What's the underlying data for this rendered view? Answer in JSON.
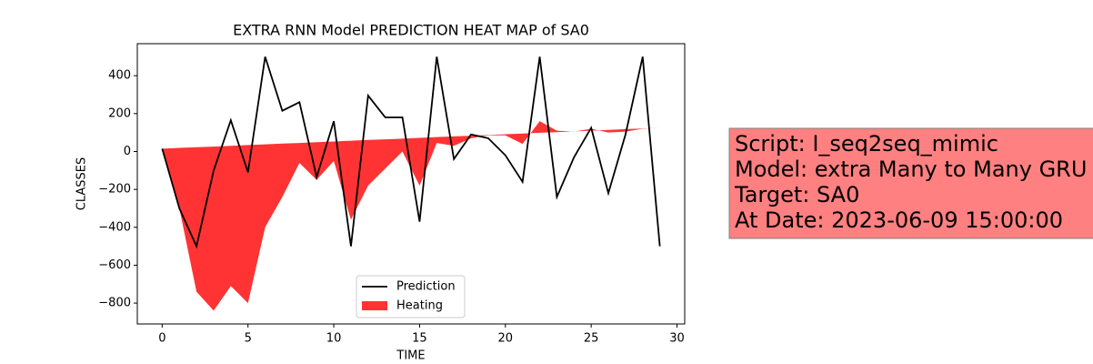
{
  "chart_data": {
    "type": "line_band",
    "title": "EXTRA RNN Model PREDICTION HEAT MAP of SA0",
    "xlabel": "TIME",
    "ylabel": "CLASSES",
    "x": [
      0,
      1,
      2,
      3,
      4,
      5,
      6,
      7,
      8,
      9,
      10,
      11,
      12,
      13,
      14,
      15,
      16,
      17,
      18,
      19,
      20,
      21,
      22,
      23,
      24,
      25,
      26,
      27,
      28,
      29
    ],
    "series": [
      {
        "name": "Prediction",
        "color": "#000000",
        "values": [
          15,
          -300,
          -500,
          -100,
          165,
          -110,
          500,
          215,
          260,
          -135,
          160,
          -500,
          295,
          180,
          180,
          -370,
          500,
          -40,
          90,
          70,
          -20,
          -160,
          500,
          -240,
          -30,
          125,
          -220,
          90,
          500,
          -500
        ]
      },
      {
        "name": "Heating",
        "color": "#ff0000",
        "opacity": 0.8,
        "upper": [
          15,
          19,
          23,
          26,
          30,
          34,
          38,
          42,
          45,
          49,
          53,
          57,
          61,
          64,
          68,
          72,
          76,
          80,
          83,
          87,
          91,
          95,
          99,
          102,
          106,
          110,
          114,
          118,
          121,
          125
        ],
        "values": [
          15,
          -300,
          -740,
          -840,
          -710,
          -800,
          -400,
          -240,
          -60,
          -150,
          -50,
          -360,
          -180,
          -90,
          0,
          -180,
          45,
          30,
          70,
          85,
          85,
          40,
          160,
          110,
          105,
          120,
          100,
          105,
          120,
          125
        ]
      }
    ],
    "xlim": [
      -1.45,
      30.45
    ],
    "xticks": [
      0,
      5,
      10,
      15,
      20,
      25,
      30
    ],
    "ylim": [
      -910,
      569
    ],
    "yticks": [
      {
        "value": -800,
        "label": "−800"
      },
      {
        "value": -600,
        "label": "−600"
      },
      {
        "value": -400,
        "label": "−400"
      },
      {
        "value": -200,
        "label": "−200"
      },
      0,
      200,
      400
    ],
    "legend": "lower center",
    "annotation": [
      "Script: I_seq2seq_mimic",
      "Model: extra Many to Many GRU",
      "Target: SA0",
      "At Date: 2023-06-09 15:00:00"
    ],
    "annotation_color": "#ff8080"
  }
}
